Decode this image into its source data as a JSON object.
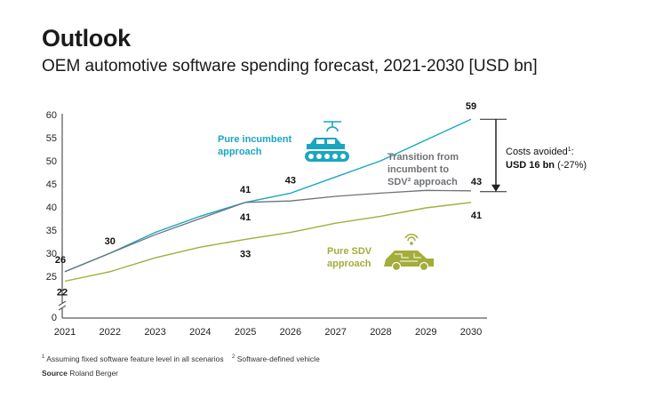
{
  "header": {
    "title": "Outlook",
    "subtitle": "OEM automotive software spending forecast, 2021-2030 [USD bn]"
  },
  "annotation": {
    "line1": "Costs avoided",
    "line1_sup": "1",
    "line1_end": ":",
    "value": "USD 16 bn",
    "pct": " (-27%)"
  },
  "footnotes": {
    "note1_sup": "1",
    "note1": "Assuming fixed software feature level in all scenarios",
    "note2_sup": "2",
    "note2": "Software-defined vehicle",
    "source_label": "Source",
    "source": "Roland Berger"
  },
  "icons": {
    "incumbent": "car-assembly-line-icon",
    "sdv": "connected-car-icon"
  },
  "chart_data": {
    "type": "line",
    "x": [
      2021,
      2022,
      2023,
      2024,
      2025,
      2026,
      2027,
      2028,
      2029,
      2030
    ],
    "y_ticks": [
      0,
      25,
      30,
      35,
      40,
      45,
      50,
      55,
      60
    ],
    "ylim": [
      0,
      60
    ],
    "axis_break": true,
    "series": [
      {
        "name": "Pure incumbent approach",
        "name_lines": [
          "Pure incumbent",
          "approach"
        ],
        "color": "#1aa6c0",
        "values": [
          26,
          30,
          34.5,
          38,
          41,
          43,
          46.5,
          50,
          54.5,
          59
        ],
        "labels": [
          {
            "x": 2022,
            "text": "30"
          },
          {
            "x": 2025,
            "text": "41"
          },
          {
            "x": 2026,
            "text": "43"
          },
          {
            "x": 2030,
            "text": "59"
          }
        ]
      },
      {
        "name": "Transition from incumbent to SDV² approach",
        "name_lines": [
          "Transition from",
          "incumbent to",
          "SDV² approach"
        ],
        "color": "#707277",
        "values": [
          26,
          30,
          34,
          37.5,
          41,
          41.3,
          42.3,
          43,
          43.6,
          43.5
        ],
        "labels": [
          {
            "x": 2021,
            "text": "26"
          },
          {
            "x": 2025,
            "text": "41"
          },
          {
            "x": 2030,
            "text": "43"
          }
        ]
      },
      {
        "name": "Pure SDV approach",
        "name_lines": [
          "Pure SDV",
          "approach"
        ],
        "color": "#a3ad3a",
        "values": [
          22,
          26,
          29,
          31.3,
          33,
          34.5,
          36.5,
          38,
          39.8,
          41
        ],
        "labels": [
          {
            "x": 2021,
            "text": "22"
          },
          {
            "x": 2025,
            "text": "33"
          },
          {
            "x": 2030,
            "text": "41"
          }
        ]
      }
    ],
    "legend": "inline"
  }
}
